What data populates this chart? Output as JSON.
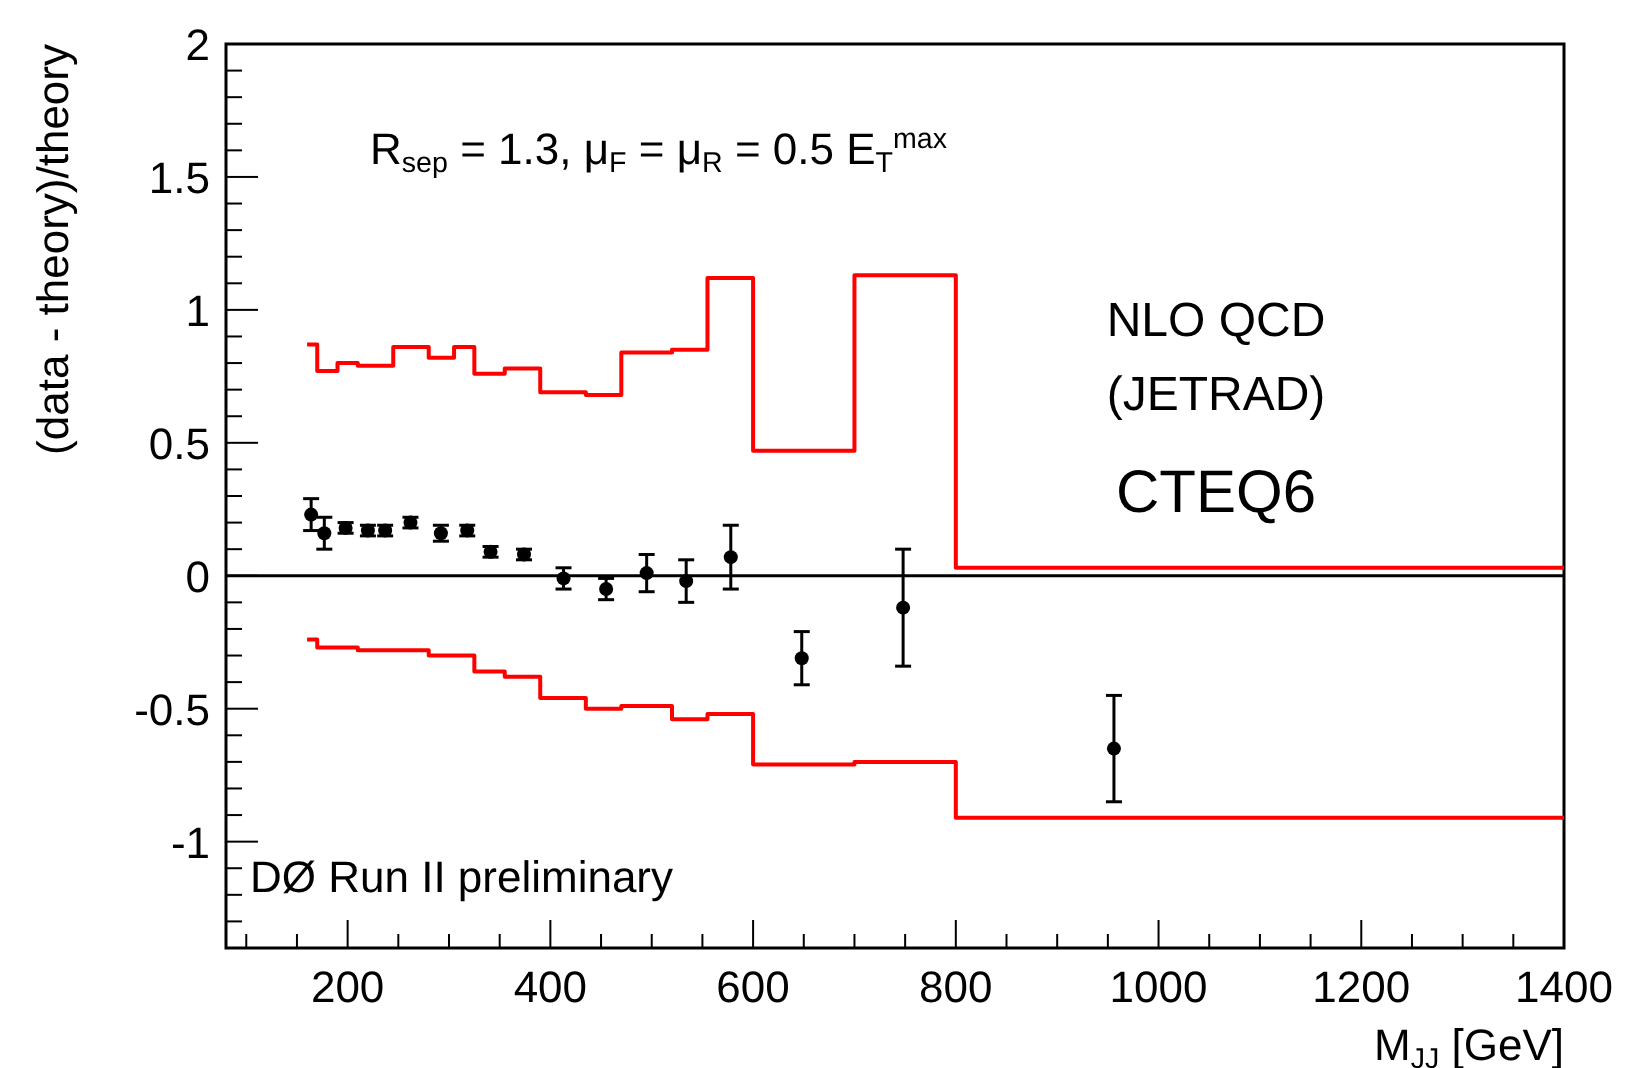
{
  "chart_data": {
    "type": "scatter",
    "xlabel": "M$_{JJ}$ [GeV]",
    "ylabel": "(data - theory)/theory",
    "xlim": [
      80,
      1400
    ],
    "ylim": [
      -1.4,
      2
    ],
    "xticks": [
      {
        "value": 100,
        "label": null
      },
      {
        "value": 150,
        "label": null
      },
      200,
      {
        "value": 250,
        "label": null
      },
      {
        "value": 300,
        "label": null
      },
      {
        "value": 350,
        "label": null
      },
      400,
      {
        "value": 450,
        "label": null
      },
      {
        "value": 500,
        "label": null
      },
      {
        "value": 550,
        "label": null
      },
      600,
      {
        "value": 650,
        "label": null
      },
      {
        "value": 700,
        "label": null
      },
      {
        "value": 750,
        "label": null
      },
      800,
      {
        "value": 850,
        "label": null
      },
      {
        "value": 900,
        "label": null
      },
      {
        "value": 950,
        "label": null
      },
      1000,
      {
        "value": 1050,
        "label": null
      },
      {
        "value": 1100,
        "label": null
      },
      {
        "value": 1150,
        "label": null
      },
      1200,
      {
        "value": 1250,
        "label": null
      },
      {
        "value": 1300,
        "label": null
      },
      {
        "value": 1350,
        "label": null
      },
      1400
    ],
    "yticks": [
      {
        "value": -1.3,
        "label": null
      },
      {
        "value": -1.2,
        "label": null
      },
      {
        "value": -1.1,
        "label": null
      },
      -1,
      {
        "value": -0.9,
        "label": null
      },
      {
        "value": -0.8,
        "label": null
      },
      {
        "value": -0.7,
        "label": null
      },
      {
        "value": -0.6,
        "label": null
      },
      -0.5,
      {
        "value": -0.4,
        "label": null
      },
      {
        "value": -0.3,
        "label": null
      },
      {
        "value": -0.2,
        "label": null
      },
      {
        "value": -0.1,
        "label": null
      },
      0,
      {
        "value": 0.1,
        "label": null
      },
      {
        "value": 0.2,
        "label": null
      },
      {
        "value": 0.3,
        "label": null
      },
      {
        "value": 0.4,
        "label": null
      },
      0.5,
      {
        "value": 0.6,
        "label": null
      },
      {
        "value": 0.7,
        "label": null
      },
      {
        "value": 0.8,
        "label": null
      },
      {
        "value": 0.9,
        "label": null
      },
      1,
      {
        "value": 1.1,
        "label": null
      },
      {
        "value": 1.2,
        "label": null
      },
      {
        "value": 1.3,
        "label": null
      },
      {
        "value": 1.4,
        "label": null
      },
      1.5,
      {
        "value": 1.6,
        "label": null
      },
      {
        "value": 1.7,
        "label": null
      },
      {
        "value": 1.8,
        "label": null
      },
      {
        "value": 1.9,
        "label": null
      },
      2
    ],
    "grid": false,
    "ref_lines": [
      {
        "axis": "y",
        "value": 0,
        "color": "#000000"
      }
    ],
    "annotations": [
      "R$_{sep}$ = 1.3, μ$_{F}$ = μ$_{R}$ = 0.5 E$_{T}$$^{max}$",
      "NLO QCD",
      "(JETRAD)",
      "CTEQ6",
      "DØ Run II preliminary"
    ],
    "series": [
      {
        "type": "step",
        "color": "#ff0000",
        "x": [
          160,
          170,
          190,
          210,
          245,
          280,
          305,
          325,
          355,
          390,
          435,
          470,
          520,
          555,
          600,
          700,
          800,
          1400
        ],
        "values": [
          0.87,
          0.77,
          0.8,
          0.79,
          0.86,
          0.82,
          0.86,
          0.76,
          0.78,
          0.69,
          0.68,
          0.84,
          0.85,
          1.12,
          0.47,
          1.13,
          0.03,
          0.03
        ]
      },
      {
        "type": "step",
        "color": "#ff0000",
        "x": [
          160,
          170,
          190,
          210,
          245,
          280,
          305,
          325,
          355,
          390,
          435,
          470,
          520,
          555,
          600,
          700,
          800,
          1400
        ],
        "values": [
          -0.24,
          -0.27,
          -0.27,
          -0.28,
          -0.28,
          -0.3,
          -0.3,
          -0.36,
          -0.38,
          -0.46,
          -0.5,
          -0.49,
          -0.54,
          -0.52,
          -0.71,
          -0.7,
          -0.91,
          -0.91
        ]
      },
      {
        "color": "#000000",
        "marker": "circle",
        "x": [
          164,
          177,
          198,
          220,
          237,
          262,
          292,
          318,
          341,
          374,
          413,
          455,
          495,
          534,
          578,
          648,
          748,
          956
        ],
        "values": [
          0.23,
          0.16,
          0.18,
          0.17,
          0.17,
          0.2,
          0.16,
          0.17,
          0.09,
          0.08,
          -0.01,
          -0.05,
          0.01,
          -0.02,
          0.07,
          -0.31,
          -0.12,
          -0.65
        ],
        "errors": [
          0.06,
          0.06,
          0.02,
          0.02,
          0.02,
          0.02,
          0.03,
          0.02,
          0.02,
          0.02,
          0.04,
          0.04,
          0.07,
          0.08,
          0.12,
          0.1,
          [
            -0.34,
            0.1
          ],
          0.2
        ]
      }
    ]
  }
}
